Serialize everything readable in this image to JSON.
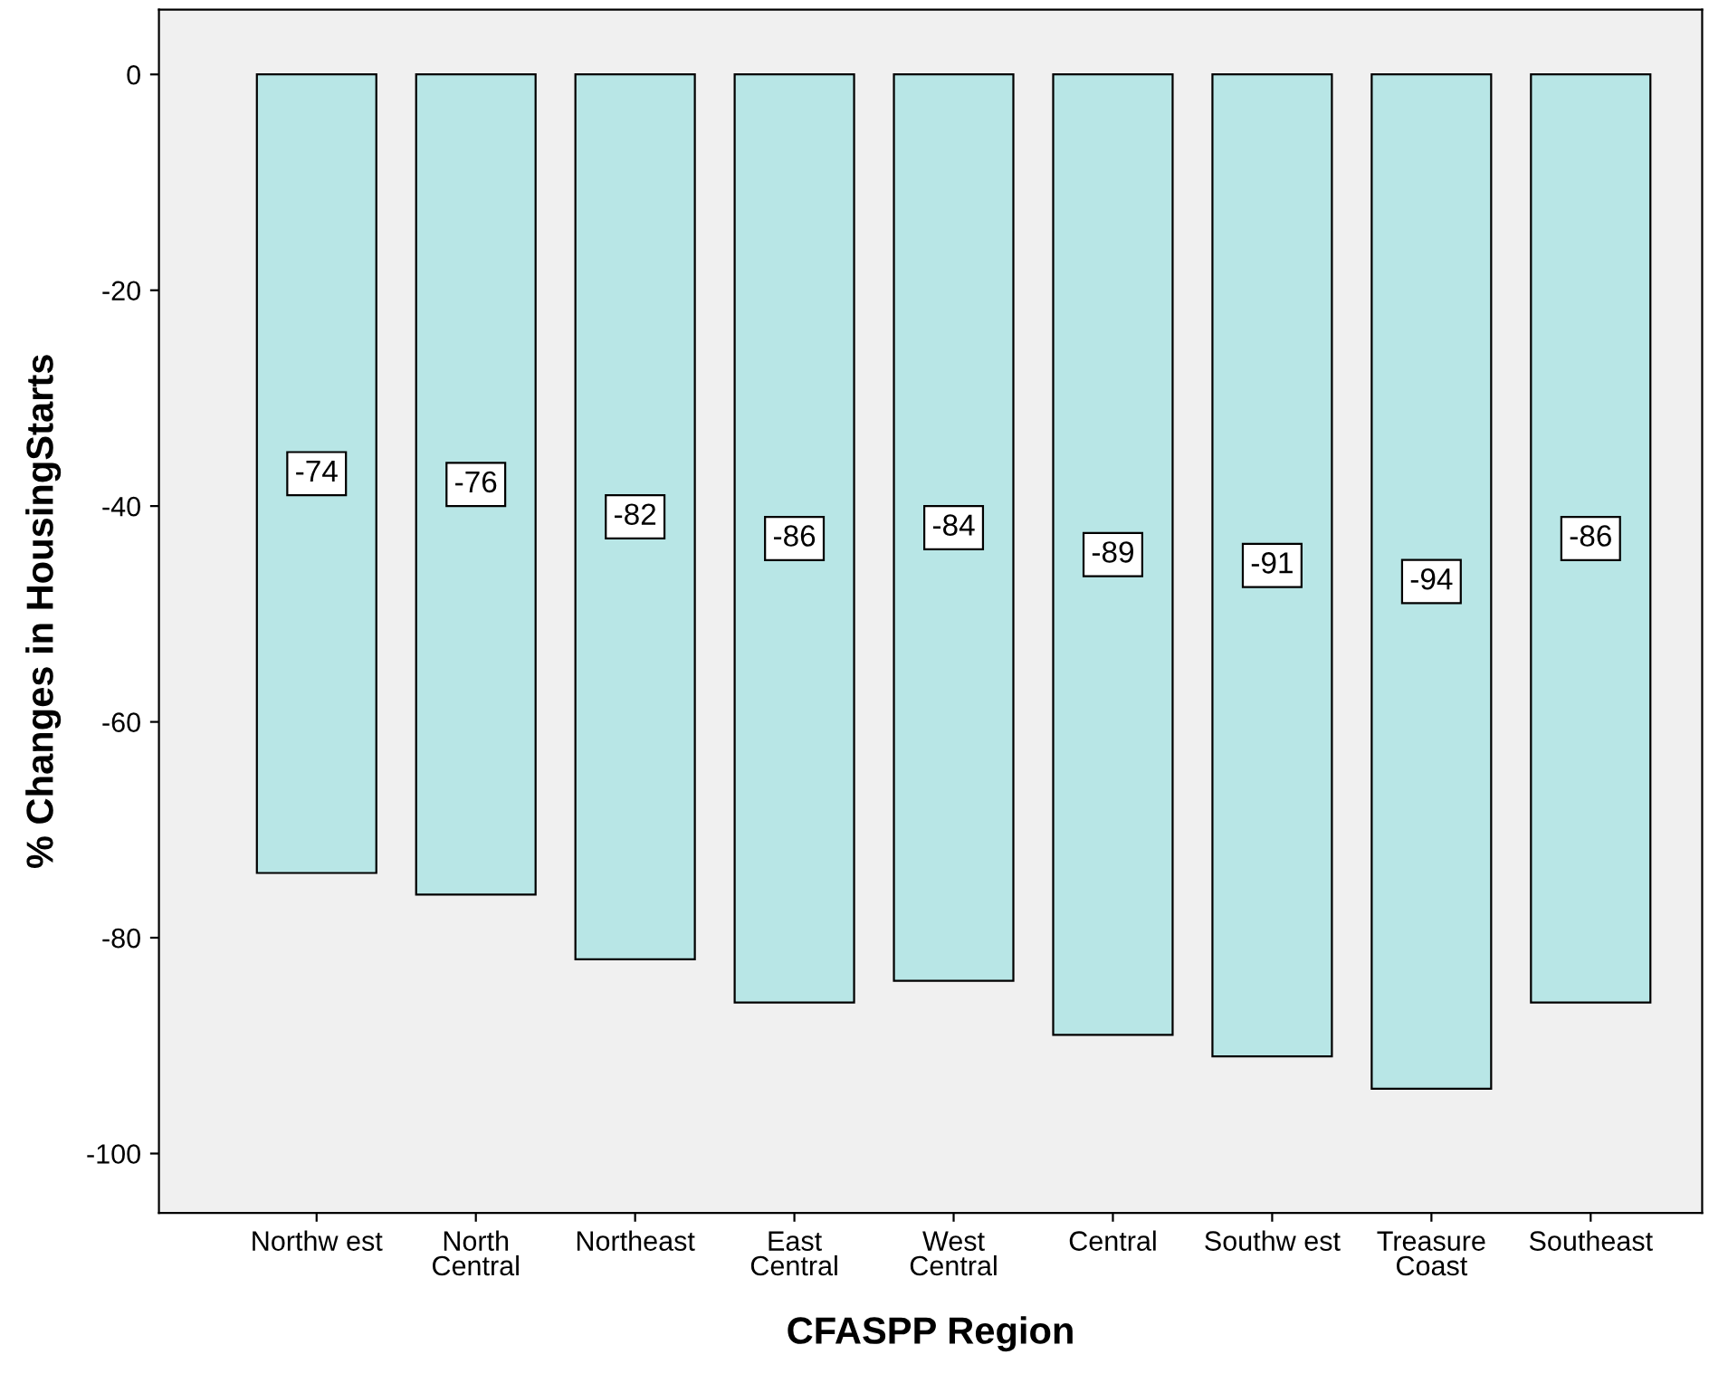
{
  "chart_data": {
    "type": "bar",
    "xlabel": "CFASPP Region",
    "ylabel": "% Changes in HousingStarts",
    "categories": [
      "Northw est",
      "North\nCentral",
      "Northeast",
      "East\nCentral",
      "West\nCentral",
      "Central",
      "Southw est",
      "Treasure\nCoast",
      "Southeast"
    ],
    "values": [
      -74,
      -76,
      -82,
      -86,
      -84,
      -89,
      -91,
      -94,
      -86
    ],
    "color": "#b8e6e6",
    "ylim": [
      -105.5,
      6
    ],
    "yticks": [
      -100,
      -80,
      -60,
      -40,
      -20,
      0
    ],
    "grid": false,
    "data_labels": true
  }
}
